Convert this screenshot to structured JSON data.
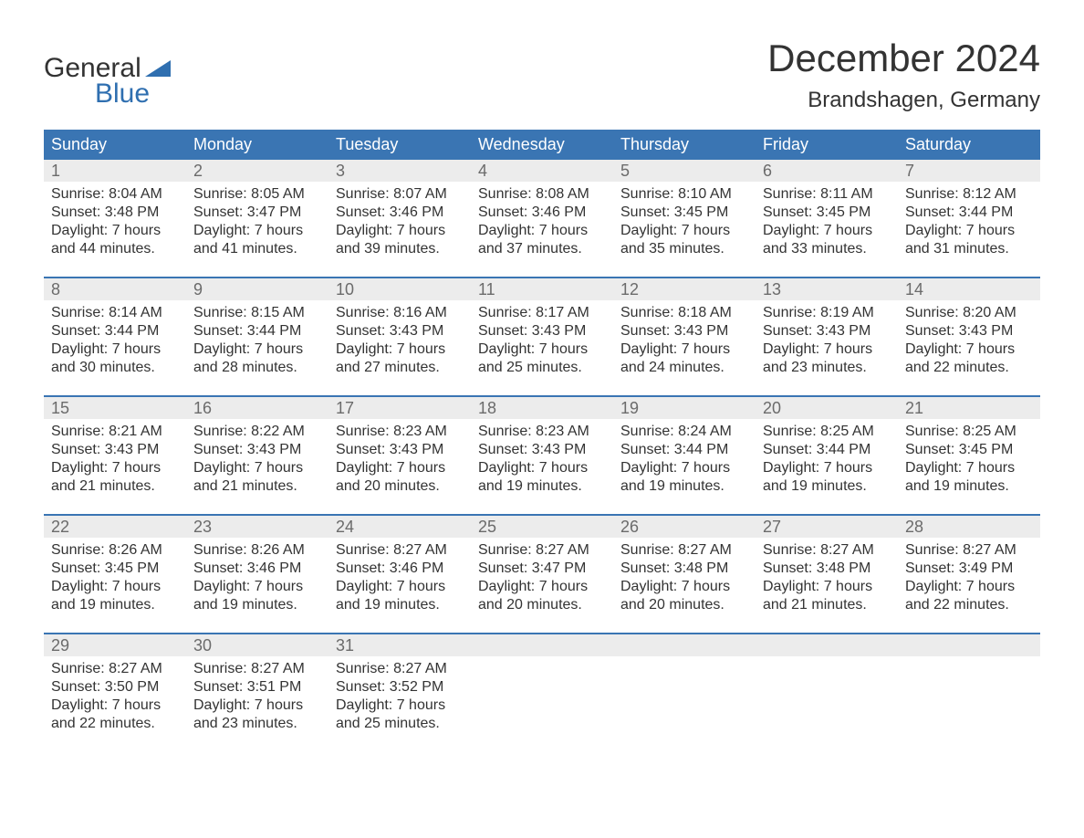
{
  "logo": {
    "word1": "General",
    "word2": "Blue",
    "tri_color": "#2f6fb0"
  },
  "title": "December 2024",
  "location": "Brandshagen, Germany",
  "colors": {
    "header_bg": "#3a75b3",
    "header_text": "#ffffff",
    "week_border": "#3a75b3",
    "daynum_bg": "#ececec",
    "daynum_text": "#6b6b6b",
    "body_text": "#333333",
    "page_bg": "#ffffff",
    "logo_blue": "#2f6fb0"
  },
  "typography": {
    "title_fontsize": 42,
    "subtitle_fontsize": 24,
    "dow_fontsize": 18,
    "daynum_fontsize": 18,
    "body_fontsize": 16,
    "font_family": "Arial"
  },
  "daysOfWeek": [
    "Sunday",
    "Monday",
    "Tuesday",
    "Wednesday",
    "Thursday",
    "Friday",
    "Saturday"
  ],
  "weeks": [
    [
      {
        "n": "1",
        "sunrise": "8:04 AM",
        "sunset": "3:48 PM",
        "daylight": "7 hours and 44 minutes."
      },
      {
        "n": "2",
        "sunrise": "8:05 AM",
        "sunset": "3:47 PM",
        "daylight": "7 hours and 41 minutes."
      },
      {
        "n": "3",
        "sunrise": "8:07 AM",
        "sunset": "3:46 PM",
        "daylight": "7 hours and 39 minutes."
      },
      {
        "n": "4",
        "sunrise": "8:08 AM",
        "sunset": "3:46 PM",
        "daylight": "7 hours and 37 minutes."
      },
      {
        "n": "5",
        "sunrise": "8:10 AM",
        "sunset": "3:45 PM",
        "daylight": "7 hours and 35 minutes."
      },
      {
        "n": "6",
        "sunrise": "8:11 AM",
        "sunset": "3:45 PM",
        "daylight": "7 hours and 33 minutes."
      },
      {
        "n": "7",
        "sunrise": "8:12 AM",
        "sunset": "3:44 PM",
        "daylight": "7 hours and 31 minutes."
      }
    ],
    [
      {
        "n": "8",
        "sunrise": "8:14 AM",
        "sunset": "3:44 PM",
        "daylight": "7 hours and 30 minutes."
      },
      {
        "n": "9",
        "sunrise": "8:15 AM",
        "sunset": "3:44 PM",
        "daylight": "7 hours and 28 minutes."
      },
      {
        "n": "10",
        "sunrise": "8:16 AM",
        "sunset": "3:43 PM",
        "daylight": "7 hours and 27 minutes."
      },
      {
        "n": "11",
        "sunrise": "8:17 AM",
        "sunset": "3:43 PM",
        "daylight": "7 hours and 25 minutes."
      },
      {
        "n": "12",
        "sunrise": "8:18 AM",
        "sunset": "3:43 PM",
        "daylight": "7 hours and 24 minutes."
      },
      {
        "n": "13",
        "sunrise": "8:19 AM",
        "sunset": "3:43 PM",
        "daylight": "7 hours and 23 minutes."
      },
      {
        "n": "14",
        "sunrise": "8:20 AM",
        "sunset": "3:43 PM",
        "daylight": "7 hours and 22 minutes."
      }
    ],
    [
      {
        "n": "15",
        "sunrise": "8:21 AM",
        "sunset": "3:43 PM",
        "daylight": "7 hours and 21 minutes."
      },
      {
        "n": "16",
        "sunrise": "8:22 AM",
        "sunset": "3:43 PM",
        "daylight": "7 hours and 21 minutes."
      },
      {
        "n": "17",
        "sunrise": "8:23 AM",
        "sunset": "3:43 PM",
        "daylight": "7 hours and 20 minutes."
      },
      {
        "n": "18",
        "sunrise": "8:23 AM",
        "sunset": "3:43 PM",
        "daylight": "7 hours and 19 minutes."
      },
      {
        "n": "19",
        "sunrise": "8:24 AM",
        "sunset": "3:44 PM",
        "daylight": "7 hours and 19 minutes."
      },
      {
        "n": "20",
        "sunrise": "8:25 AM",
        "sunset": "3:44 PM",
        "daylight": "7 hours and 19 minutes."
      },
      {
        "n": "21",
        "sunrise": "8:25 AM",
        "sunset": "3:45 PM",
        "daylight": "7 hours and 19 minutes."
      }
    ],
    [
      {
        "n": "22",
        "sunrise": "8:26 AM",
        "sunset": "3:45 PM",
        "daylight": "7 hours and 19 minutes."
      },
      {
        "n": "23",
        "sunrise": "8:26 AM",
        "sunset": "3:46 PM",
        "daylight": "7 hours and 19 minutes."
      },
      {
        "n": "24",
        "sunrise": "8:27 AM",
        "sunset": "3:46 PM",
        "daylight": "7 hours and 19 minutes."
      },
      {
        "n": "25",
        "sunrise": "8:27 AM",
        "sunset": "3:47 PM",
        "daylight": "7 hours and 20 minutes."
      },
      {
        "n": "26",
        "sunrise": "8:27 AM",
        "sunset": "3:48 PM",
        "daylight": "7 hours and 20 minutes."
      },
      {
        "n": "27",
        "sunrise": "8:27 AM",
        "sunset": "3:48 PM",
        "daylight": "7 hours and 21 minutes."
      },
      {
        "n": "28",
        "sunrise": "8:27 AM",
        "sunset": "3:49 PM",
        "daylight": "7 hours and 22 minutes."
      }
    ],
    [
      {
        "n": "29",
        "sunrise": "8:27 AM",
        "sunset": "3:50 PM",
        "daylight": "7 hours and 22 minutes."
      },
      {
        "n": "30",
        "sunrise": "8:27 AM",
        "sunset": "3:51 PM",
        "daylight": "7 hours and 23 minutes."
      },
      {
        "n": "31",
        "sunrise": "8:27 AM",
        "sunset": "3:52 PM",
        "daylight": "7 hours and 25 minutes."
      },
      {
        "n": "",
        "empty": true
      },
      {
        "n": "",
        "empty": true
      },
      {
        "n": "",
        "empty": true
      },
      {
        "n": "",
        "empty": true
      }
    ]
  ],
  "labels": {
    "sunrise": "Sunrise:",
    "sunset": "Sunset:",
    "daylight": "Daylight:"
  }
}
